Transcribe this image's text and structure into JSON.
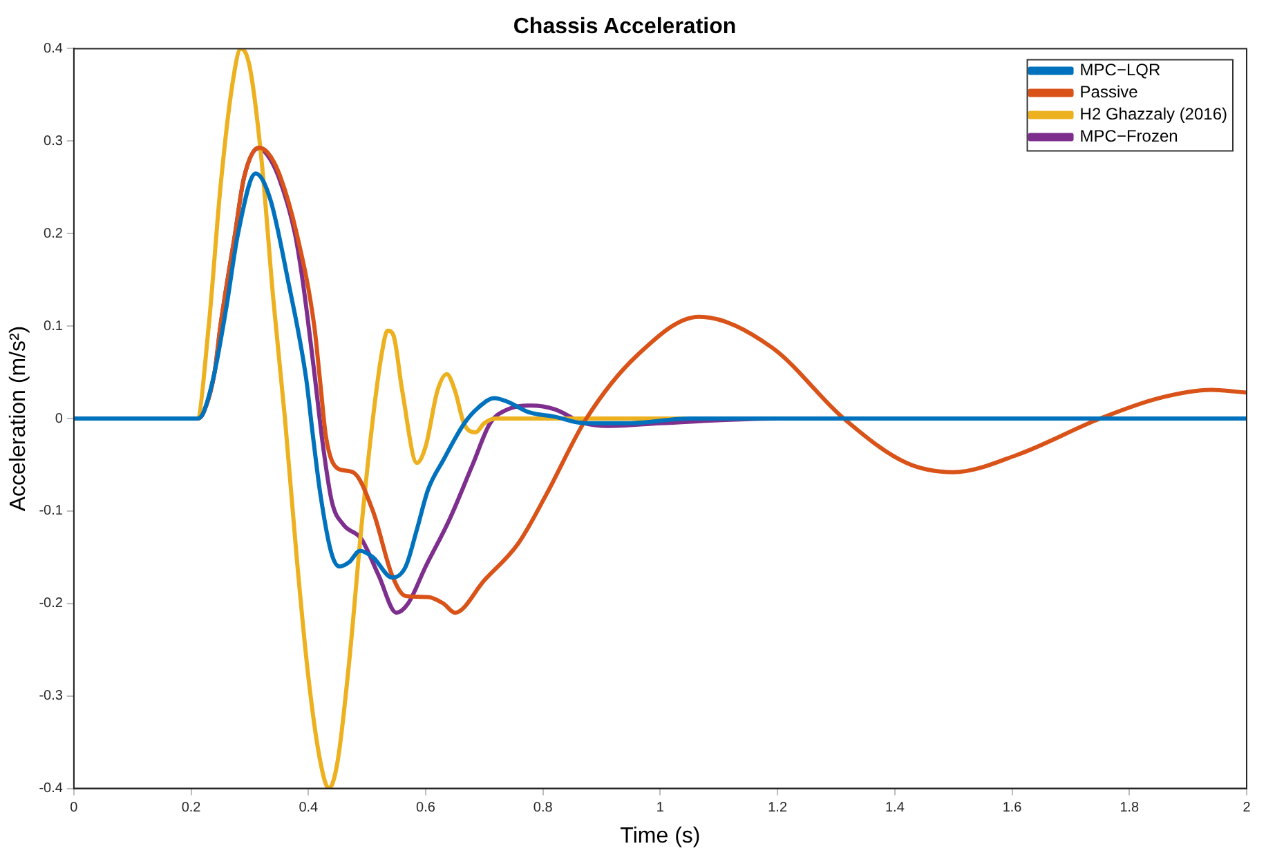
{
  "chart_data": {
    "type": "line",
    "title": "Chassis Acceleration",
    "xlabel": "Time (s)",
    "ylabel": "Acceleration (m/s²)",
    "xlim": [
      0,
      2
    ],
    "xticks": [
      0,
      0.2,
      0.4,
      0.6,
      0.8,
      1,
      1.2,
      1.4,
      1.6,
      1.8,
      2
    ],
    "ylim": [
      -0.4,
      0.4
    ],
    "yticks": [
      -0.4,
      -0.3,
      -0.2,
      -0.1,
      0,
      0.1,
      0.2,
      0.3,
      0.4
    ],
    "grid": false,
    "legend": "top right",
    "marker": "none",
    "line_style": "solid",
    "series": [
      {
        "name": "MPC−LQR",
        "color": "#0072bd",
        "x": [
          0,
          0.21,
          0.22,
          0.24,
          0.26,
          0.28,
          0.31,
          0.335,
          0.365,
          0.396,
          0.407,
          0.42,
          0.439,
          0.453,
          0.47,
          0.488,
          0.51,
          0.543,
          0.566,
          0.585,
          0.604,
          0.63,
          0.666,
          0.69,
          0.717,
          0.74,
          0.775,
          0.82,
          0.87,
          0.95,
          1.05,
          2
        ],
        "values": [
          0,
          0,
          0.005,
          0.05,
          0.12,
          0.2,
          0.265,
          0.237,
          0.15,
          0.044,
          -0.015,
          -0.08,
          -0.145,
          -0.16,
          -0.155,
          -0.143,
          -0.15,
          -0.172,
          -0.16,
          -0.12,
          -0.077,
          -0.045,
          -0.005,
          0.012,
          0.022,
          0.018,
          0.007,
          0.002,
          -0.005,
          -0.005,
          0,
          0
        ]
      },
      {
        "name": "Passive",
        "color": "#d95319",
        "x": [
          0,
          0.21,
          0.22,
          0.24,
          0.25,
          0.275,
          0.29,
          0.315,
          0.33,
          0.35,
          0.38,
          0.41,
          0.42,
          0.43,
          0.45,
          0.476,
          0.51,
          0.543,
          0.566,
          0.604,
          0.63,
          0.65,
          0.7,
          0.758,
          0.805,
          0.874,
          0.96,
          1.066,
          1.19,
          1.313,
          1.42,
          1.5,
          1.61,
          1.75,
          1.85,
          1.94,
          2
        ],
        "values": [
          0,
          0,
          0.005,
          0.05,
          0.1,
          0.2,
          0.26,
          0.293,
          0.288,
          0.265,
          0.2,
          0.1,
          0.04,
          -0.02,
          -0.054,
          -0.058,
          -0.1,
          -0.17,
          -0.192,
          -0.193,
          -0.2,
          -0.21,
          -0.175,
          -0.135,
          -0.083,
          0,
          0.068,
          0.11,
          0.077,
          0,
          -0.048,
          -0.058,
          -0.039,
          0,
          0.022,
          0.031,
          0.028
        ]
      },
      {
        "name": "H2 Ghazzaly (2016)",
        "color": "#edb120",
        "x": [
          0,
          0.21,
          0.23,
          0.25,
          0.27,
          0.285,
          0.3,
          0.32,
          0.34,
          0.36,
          0.38,
          0.4,
          0.42,
          0.435,
          0.45,
          0.47,
          0.49,
          0.51,
          0.525,
          0.535,
          0.545,
          0.56,
          0.585,
          0.6,
          0.62,
          0.636,
          0.65,
          0.665,
          0.685,
          0.7,
          0.72,
          2
        ],
        "values": [
          0,
          0,
          0.1,
          0.25,
          0.36,
          0.4,
          0.38,
          0.28,
          0.13,
          0,
          -0.15,
          -0.28,
          -0.37,
          -0.4,
          -0.37,
          -0.26,
          -0.12,
          0,
          0.07,
          0.095,
          0.09,
          0.03,
          -0.048,
          -0.03,
          0.03,
          0.048,
          0.03,
          -0.005,
          -0.015,
          -0.005,
          0,
          0
        ]
      },
      {
        "name": "MPC−Frozen",
        "color": "#7e2f8e",
        "x": [
          0,
          0.21,
          0.22,
          0.24,
          0.25,
          0.275,
          0.29,
          0.314,
          0.33,
          0.35,
          0.377,
          0.39,
          0.41,
          0.425,
          0.44,
          0.46,
          0.49,
          0.52,
          0.55,
          0.57,
          0.6,
          0.64,
          0.68,
          0.71,
          0.74,
          0.78,
          0.82,
          0.87,
          0.91,
          1.0,
          1.2,
          2
        ],
        "values": [
          0,
          0,
          0.005,
          0.05,
          0.1,
          0.2,
          0.26,
          0.292,
          0.285,
          0.26,
          0.2,
          0.15,
          0.05,
          -0.03,
          -0.09,
          -0.115,
          -0.13,
          -0.17,
          -0.21,
          -0.2,
          -0.16,
          -0.11,
          -0.05,
          -0.005,
          0.01,
          0.014,
          0.01,
          -0.005,
          -0.008,
          -0.005,
          0,
          0
        ]
      }
    ]
  }
}
